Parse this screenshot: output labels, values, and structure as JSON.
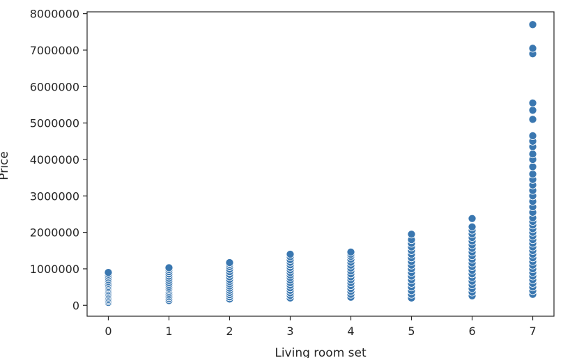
{
  "chart_data": {
    "type": "scatter",
    "xlabel": "Living room set",
    "ylabel": "Price",
    "xlim": [
      -0.35,
      7.35
    ],
    "ylim": [
      -300000,
      8050000
    ],
    "x_ticks": [
      0,
      1,
      2,
      3,
      4,
      5,
      6,
      7
    ],
    "y_ticks": [
      0,
      1000000,
      2000000,
      3000000,
      4000000,
      5000000,
      6000000,
      7000000,
      8000000
    ],
    "grid": false,
    "marker_color": "#3a77b0",
    "marker_edge_color": "#ffffff",
    "points": [
      {
        "x": 0,
        "values": [
          80000,
          120000,
          160000,
          200000,
          240000,
          280000,
          320000,
          360000,
          400000,
          440000,
          480000,
          520000,
          560000,
          600000,
          650000,
          700000,
          750000,
          800000,
          850000,
          900000
        ]
      },
      {
        "x": 1,
        "values": [
          130000,
          180000,
          230000,
          280000,
          330000,
          380000,
          430000,
          470000,
          520000,
          570000,
          620000,
          680000,
          740000,
          800000,
          860000,
          920000,
          980000,
          1030000
        ]
      },
      {
        "x": 2,
        "values": [
          170000,
          230000,
          290000,
          350000,
          410000,
          470000,
          530000,
          590000,
          650000,
          710000,
          780000,
          850000,
          920000,
          990000,
          1060000,
          1120000,
          1170000
        ]
      },
      {
        "x": 3,
        "values": [
          200000,
          270000,
          340000,
          410000,
          480000,
          550000,
          620000,
          690000,
          760000,
          830000,
          900000,
          970000,
          1040000,
          1110000,
          1180000,
          1250000,
          1330000,
          1400000
        ]
      },
      {
        "x": 4,
        "values": [
          220000,
          300000,
          380000,
          460000,
          540000,
          620000,
          700000,
          780000,
          860000,
          940000,
          1020000,
          1100000,
          1180000,
          1260000,
          1340000,
          1400000,
          1460000
        ]
      },
      {
        "x": 5,
        "values": [
          200000,
          300000,
          400000,
          500000,
          600000,
          700000,
          800000,
          900000,
          1000000,
          1100000,
          1200000,
          1300000,
          1400000,
          1500000,
          1600000,
          1700000,
          1800000,
          1950000
        ]
      },
      {
        "x": 6,
        "values": [
          260000,
          360000,
          460000,
          560000,
          660000,
          760000,
          860000,
          960000,
          1060000,
          1160000,
          1260000,
          1360000,
          1460000,
          1560000,
          1660000,
          1760000,
          1860000,
          1960000,
          2060000,
          2150000,
          2380000
        ]
      },
      {
        "x": 7,
        "values": [
          300000,
          400000,
          500000,
          600000,
          700000,
          800000,
          900000,
          1000000,
          1100000,
          1200000,
          1300000,
          1400000,
          1500000,
          1600000,
          1700000,
          1800000,
          1900000,
          2000000,
          2100000,
          2200000,
          2300000,
          2400000,
          2550000,
          2700000,
          2850000,
          3000000,
          3150000,
          3300000,
          3450000,
          3600000,
          3800000,
          4000000,
          4150000,
          4350000,
          4500000,
          4650000,
          5100000,
          5350000,
          5550000,
          6900000,
          7050000,
          7700000
        ]
      }
    ]
  }
}
